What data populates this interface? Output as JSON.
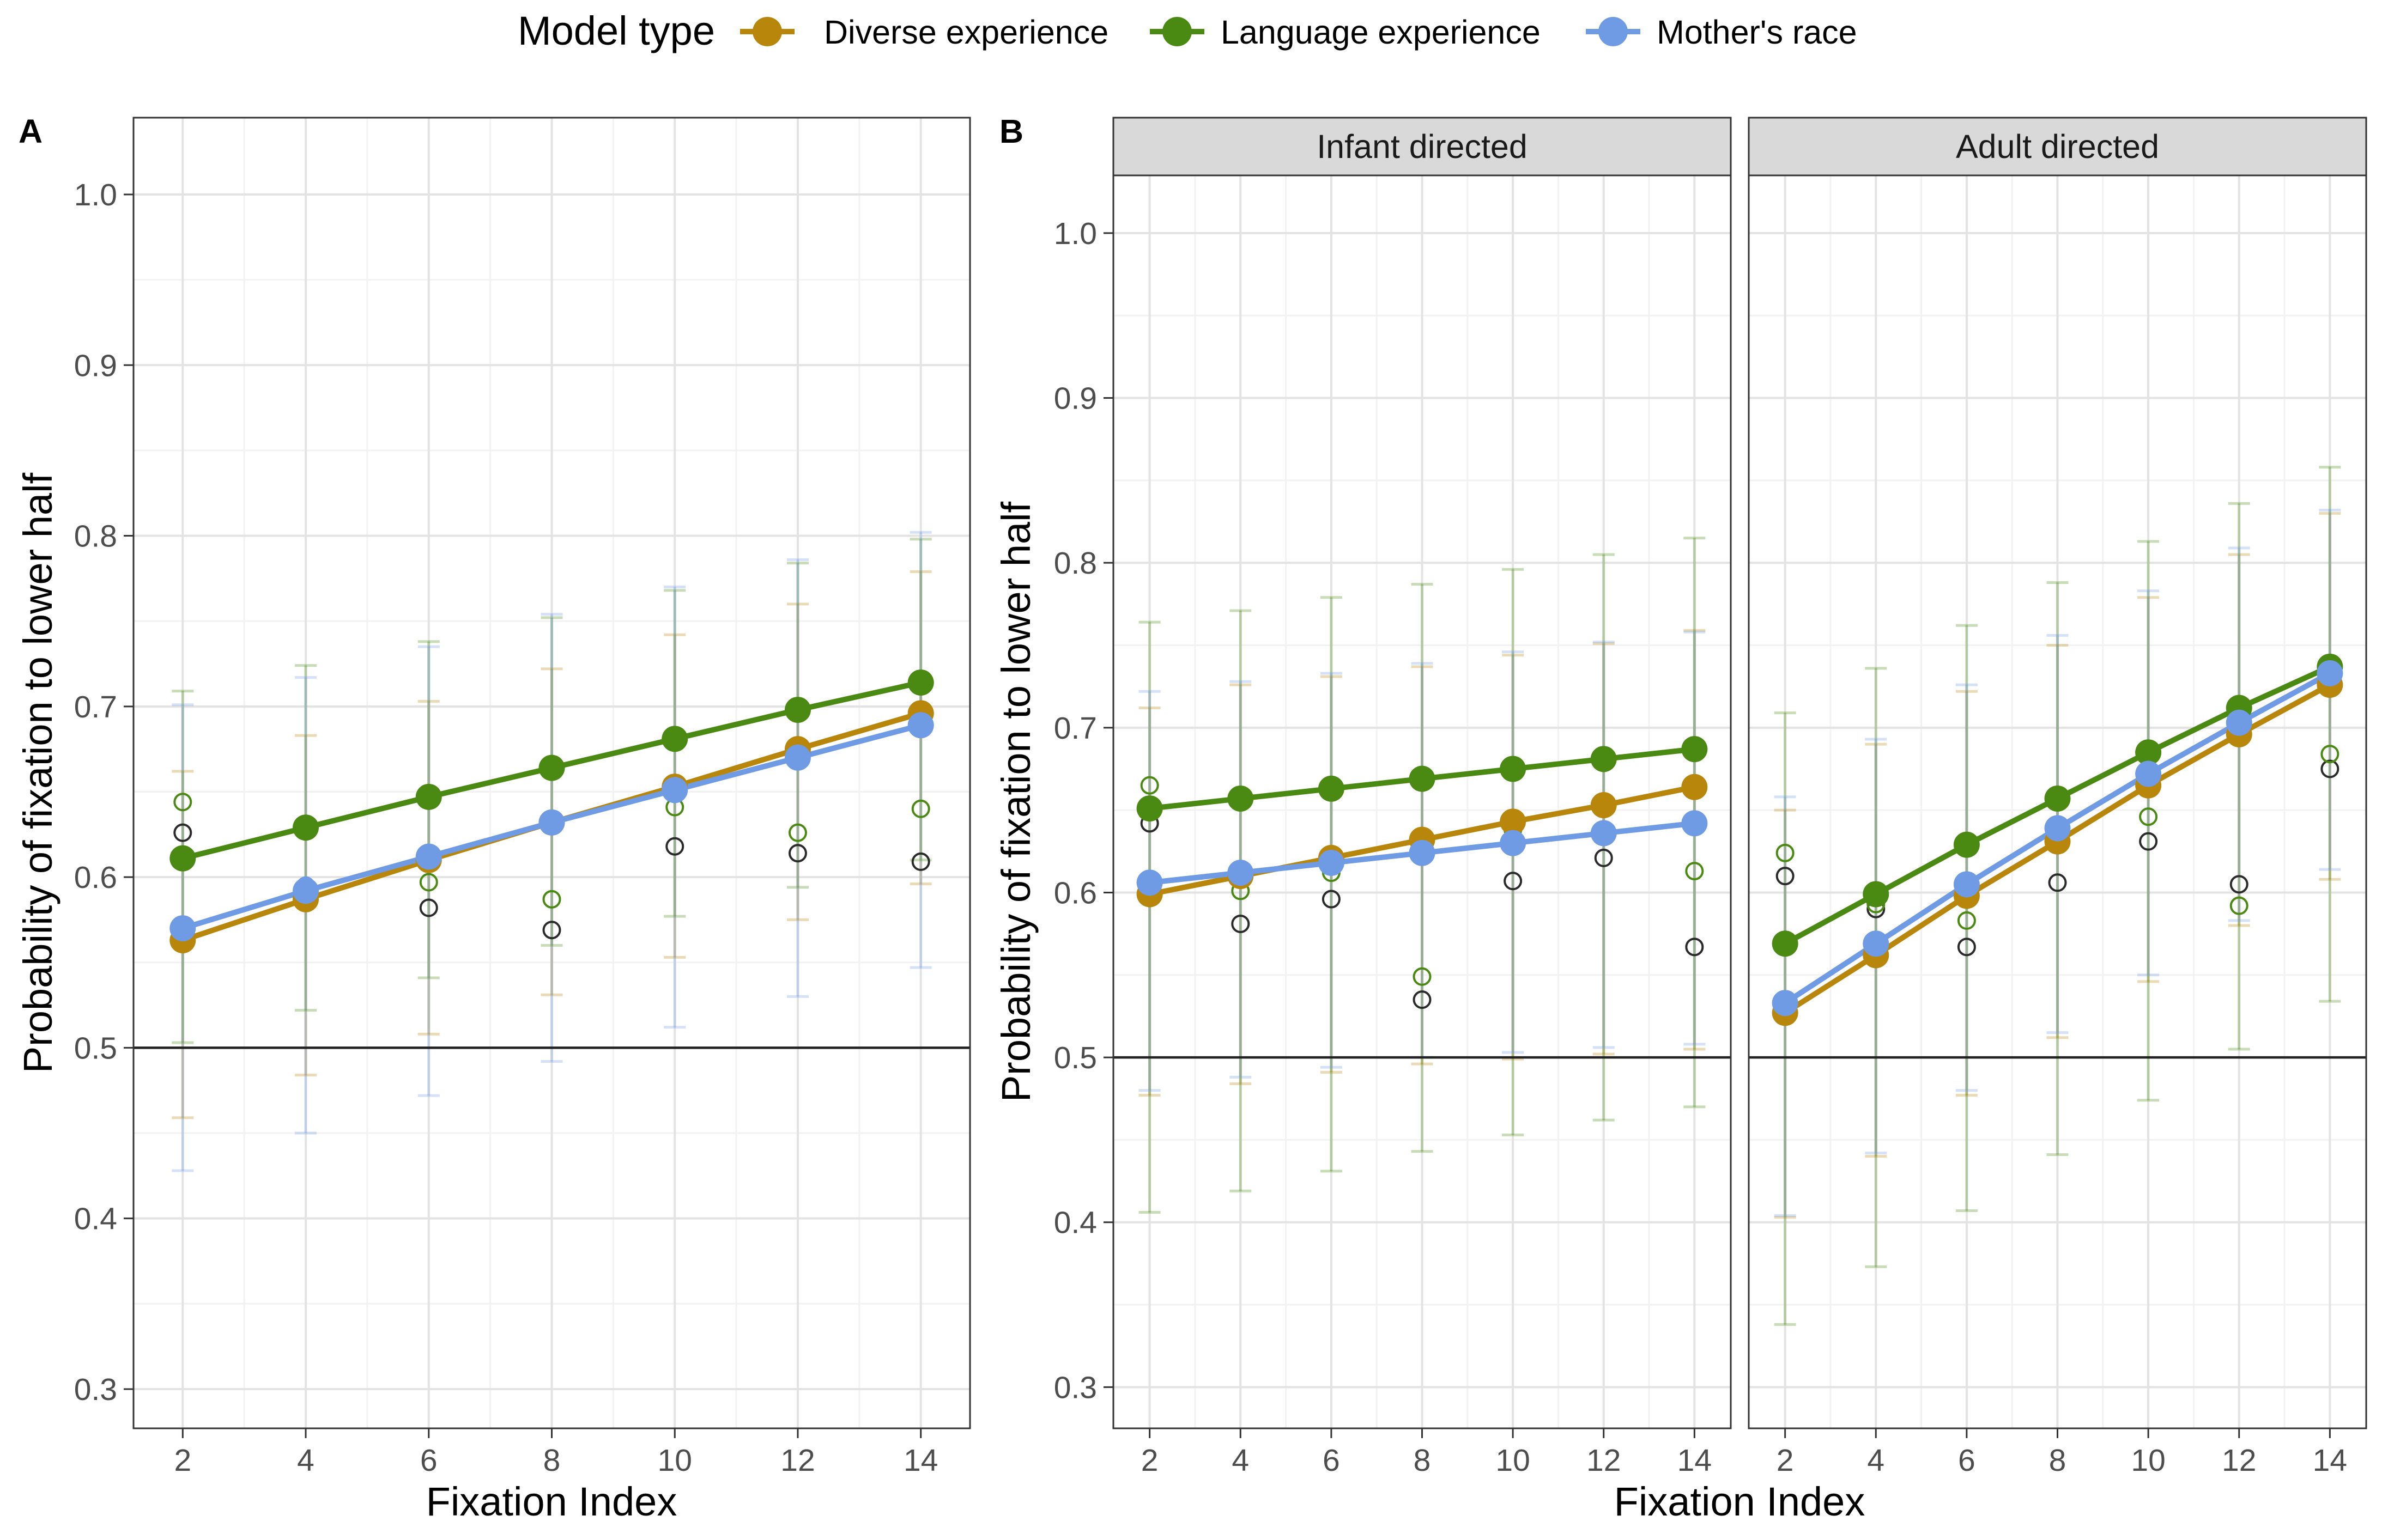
{
  "legend": {
    "title": "Model type",
    "entries": [
      {
        "name": "Diverse experience",
        "color": "#b8860b"
      },
      {
        "name": "Language experience",
        "color": "#4a8a12"
      },
      {
        "name": "Mother's race",
        "color": "#6f9be4"
      }
    ]
  },
  "chart_data": [
    {
      "type": "line",
      "panel_tag": "A",
      "xlabel": "Fixation Index",
      "ylabel": "Probability of fixation to lower half",
      "x": [
        2,
        4,
        6,
        8,
        10,
        12,
        14
      ],
      "xticks": [
        "2",
        "4",
        "6",
        "8",
        "10",
        "12",
        "14"
      ],
      "yticks": [
        "0.3",
        "0.4",
        "0.5",
        "0.6",
        "0.7",
        "0.8",
        "0.9",
        "1.0"
      ],
      "xlim": [
        1.2,
        14.8
      ],
      "ylim": [
        0.277,
        1.045
      ],
      "reference_line": 0.5,
      "grid": true,
      "legend_placement": "top",
      "series": [
        {
          "name": "Diverse experience",
          "color": "#b8860b",
          "values": [
            0.563,
            0.587,
            0.61,
            0.632,
            0.653,
            0.675,
            0.696
          ],
          "lower": [
            0.459,
            0.484,
            0.508,
            0.531,
            0.553,
            0.575,
            0.596
          ],
          "upper": [
            0.662,
            0.683,
            0.703,
            0.722,
            0.742,
            0.76,
            0.779
          ]
        },
        {
          "name": "Language experience",
          "color": "#4a8a12",
          "values": [
            0.611,
            0.629,
            0.647,
            0.664,
            0.681,
            0.698,
            0.714
          ],
          "lower": [
            0.503,
            0.522,
            0.541,
            0.56,
            0.577,
            0.594,
            0.61
          ],
          "upper": [
            0.709,
            0.724,
            0.738,
            0.752,
            0.768,
            0.784,
            0.798
          ]
        },
        {
          "name": "Mother's race",
          "color": "#6f9be4",
          "values": [
            0.57,
            0.592,
            0.612,
            0.632,
            0.651,
            0.67,
            0.689
          ],
          "lower": [
            0.428,
            0.45,
            0.472,
            0.492,
            0.512,
            0.53,
            0.547
          ],
          "upper": [
            0.701,
            0.717,
            0.735,
            0.754,
            0.77,
            0.786,
            0.802
          ]
        }
      ],
      "observed": [
        {
          "color": "#2b2b2b",
          "values": [
            0.626,
            0.585,
            0.582,
            0.569,
            0.618,
            0.614,
            0.609
          ]
        },
        {
          "color": "#4a8a12",
          "values": [
            0.644,
            0.586,
            0.597,
            0.587,
            0.641,
            0.626,
            0.64
          ]
        },
        {
          "color": "#6f9be4",
          "values": [
            null,
            0.595,
            null,
            null,
            null,
            null,
            null
          ]
        }
      ]
    },
    {
      "type": "line",
      "panel_tag": "B",
      "xlabel": "Fixation Index",
      "ylabel": "Probability of fixation to lower half",
      "x": [
        2,
        4,
        6,
        8,
        10,
        12,
        14
      ],
      "xticks": [
        "2",
        "4",
        "6",
        "8",
        "10",
        "12",
        "14"
      ],
      "yticks": [
        "0.3",
        "0.4",
        "0.5",
        "0.6",
        "0.7",
        "0.8",
        "0.9",
        "1.0"
      ],
      "xlim": [
        1.2,
        14.8
      ],
      "ylim": [
        0.275,
        1.035
      ],
      "reference_line": 0.5,
      "grid": true,
      "facets": [
        {
          "label": "Infant directed",
          "series": [
            {
              "name": "Diverse experience",
              "color": "#b8860b",
              "values": [
                0.599,
                0.61,
                0.621,
                0.632,
                0.643,
                0.653,
                0.664
              ],
              "lower": [
                0.477,
                0.484,
                0.491,
                0.496,
                0.499,
                0.502,
                0.505
              ],
              "upper": [
                0.712,
                0.726,
                0.731,
                0.737,
                0.744,
                0.751,
                0.759
              ]
            },
            {
              "name": "Language experience",
              "color": "#4a8a12",
              "values": [
                0.651,
                0.657,
                0.663,
                0.669,
                0.675,
                0.681,
                0.687
              ],
              "lower": [
                0.406,
                0.419,
                0.431,
                0.443,
                0.453,
                0.462,
                0.47
              ],
              "upper": [
                0.764,
                0.771,
                0.779,
                0.787,
                0.796,
                0.805,
                0.815
              ]
            },
            {
              "name": "Mother's race",
              "color": "#6f9be4",
              "values": [
                0.606,
                0.612,
                0.618,
                0.624,
                0.63,
                0.636,
                0.642
              ],
              "lower": [
                0.48,
                0.488,
                0.494,
                0.5,
                0.503,
                0.506,
                0.508
              ],
              "upper": [
                0.722,
                0.728,
                0.733,
                0.739,
                0.746,
                0.752,
                0.758
              ]
            }
          ],
          "observed": [
            {
              "color": "#2b2b2b",
              "values": [
                0.642,
                0.581,
                0.596,
                0.535,
                0.607,
                0.621,
                0.567
              ]
            },
            {
              "color": "#4a8a12",
              "values": [
                0.665,
                0.601,
                0.612,
                0.549,
                0.638,
                0.653,
                0.613
              ]
            }
          ]
        },
        {
          "label": "Adult directed",
          "series": [
            {
              "name": "Diverse experience",
              "color": "#b8860b",
              "values": [
                0.527,
                0.562,
                0.598,
                0.631,
                0.665,
                0.696,
                0.726
              ],
              "lower": [
                0.403,
                0.44,
                0.477,
                0.512,
                0.546,
                0.58,
                0.608
              ],
              "upper": [
                0.65,
                0.69,
                0.722,
                0.75,
                0.779,
                0.805,
                0.83
              ]
            },
            {
              "name": "Language experience",
              "color": "#4a8a12",
              "values": [
                0.569,
                0.599,
                0.629,
                0.657,
                0.685,
                0.712,
                0.737
              ],
              "lower": [
                0.338,
                0.373,
                0.407,
                0.441,
                0.474,
                0.505,
                0.534
              ],
              "upper": [
                0.709,
                0.736,
                0.762,
                0.788,
                0.813,
                0.836,
                0.858
              ]
            },
            {
              "name": "Mother's race",
              "color": "#6f9be4",
              "values": [
                0.533,
                0.569,
                0.605,
                0.639,
                0.672,
                0.703,
                0.733
              ],
              "lower": [
                0.404,
                0.442,
                0.48,
                0.515,
                0.55,
                0.583,
                0.614
              ],
              "upper": [
                0.658,
                0.693,
                0.726,
                0.756,
                0.783,
                0.809,
                0.832
              ]
            }
          ],
          "observed": [
            {
              "color": "#2b2b2b",
              "values": [
                0.61,
                0.59,
                0.567,
                0.606,
                0.631,
                0.605,
                0.675
              ]
            },
            {
              "color": "#4a8a12",
              "values": [
                0.624,
                0.593,
                0.583,
                0.631,
                0.646,
                0.592,
                0.684
              ]
            }
          ]
        }
      ]
    }
  ]
}
